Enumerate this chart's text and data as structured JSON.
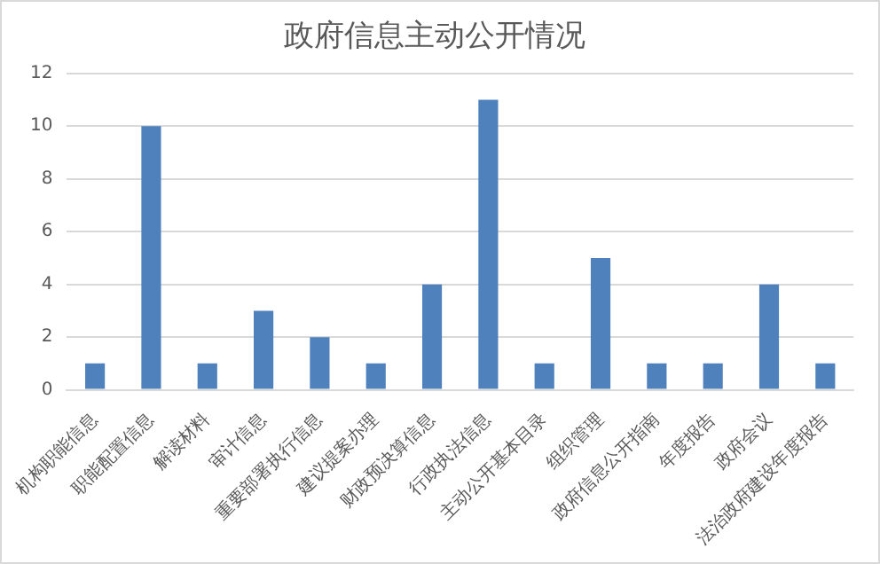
{
  "chart_data": {
    "type": "bar",
    "title": "政府信息主动公开情况",
    "categories": [
      "机构职能信息",
      "职能配置信息",
      "解读材料",
      "审计信息",
      "重要部署执行信息",
      "建议提案办理",
      "财政预决算信息",
      "行政执法信息",
      "主动公开基本目录",
      "组织管理",
      "政府信息公开指南",
      "年度报告",
      "政府会议",
      "法治政府建设年度报告"
    ],
    "values": [
      1,
      10,
      1,
      3,
      2,
      1,
      4,
      11,
      1,
      5,
      1,
      1,
      4,
      1
    ],
    "color": "#4f81bd",
    "ylim": [
      0,
      12
    ],
    "yticks": [
      0,
      2,
      4,
      6,
      8,
      10,
      12
    ],
    "grid": "y",
    "legend": false
  }
}
